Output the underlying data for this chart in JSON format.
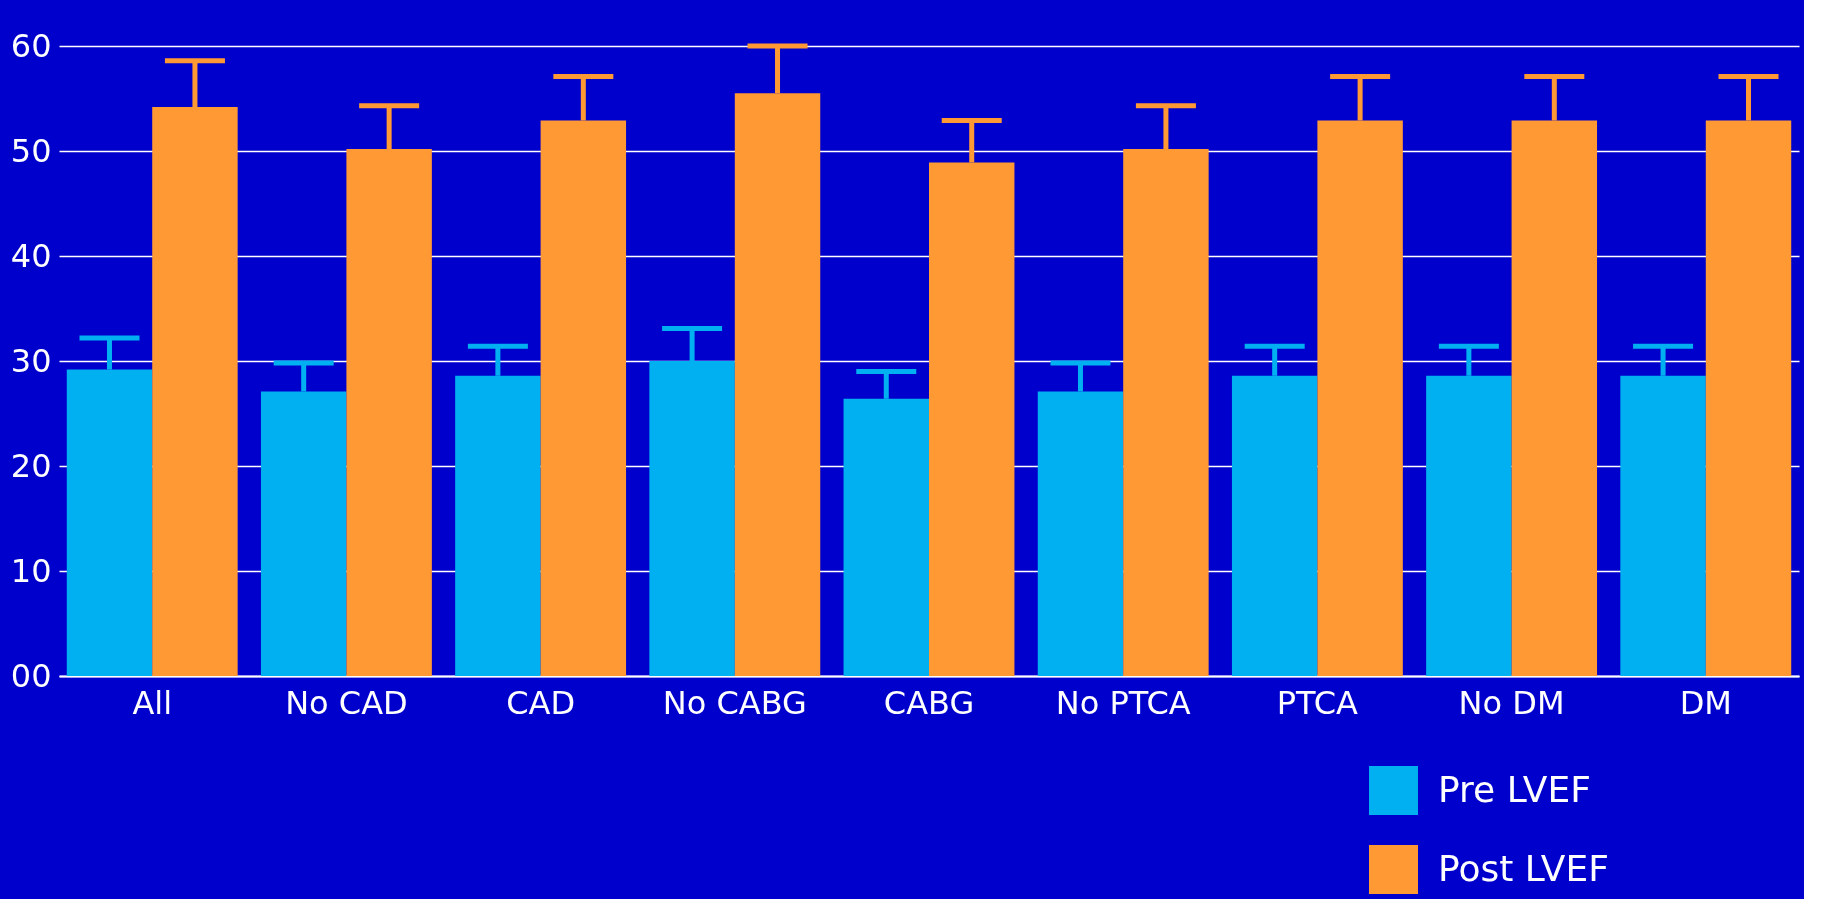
{
  "chart_data": {
    "type": "bar",
    "categories": [
      "All",
      "No CAD",
      "CAD",
      "No CABG",
      "CABG",
      "No PTCA",
      "PTCA",
      "No DM",
      "DM"
    ],
    "series": [
      {
        "name": "Pre LVEF",
        "color": "#00b0f0",
        "values": [
          29.2,
          27.1,
          28.6,
          30.0,
          26.4,
          27.1,
          28.6,
          28.6,
          28.6
        ],
        "errors": [
          [
            29.2,
            32.2
          ],
          [
            27.1,
            29.8
          ],
          [
            28.6,
            31.4
          ],
          [
            30.0,
            33.1
          ],
          [
            26.4,
            29.0
          ],
          [
            27.1,
            29.8
          ],
          [
            28.6,
            31.4
          ],
          [
            28.6,
            31.4
          ],
          [
            28.6,
            31.4
          ]
        ]
      },
      {
        "name": "Post LVEF",
        "color": "#ff9933",
        "values": [
          54.2,
          50.2,
          52.9,
          55.5,
          48.9,
          50.2,
          52.9,
          52.9,
          52.9
        ],
        "errors": [
          [
            54.2,
            58.6
          ],
          [
            50.2,
            54.3
          ],
          [
            52.9,
            57.1
          ],
          [
            55.5,
            60.0
          ],
          [
            48.9,
            52.9
          ],
          [
            50.2,
            54.3
          ],
          [
            52.9,
            57.1
          ],
          [
            52.9,
            57.1
          ],
          [
            52.9,
            57.1
          ]
        ]
      }
    ],
    "ylim": [
      0,
      60
    ],
    "yticks": [
      {
        "value": 0,
        "label": "00"
      },
      10,
      20,
      30,
      40,
      50,
      60
    ],
    "grid": "y",
    "legend": "bottom right"
  }
}
